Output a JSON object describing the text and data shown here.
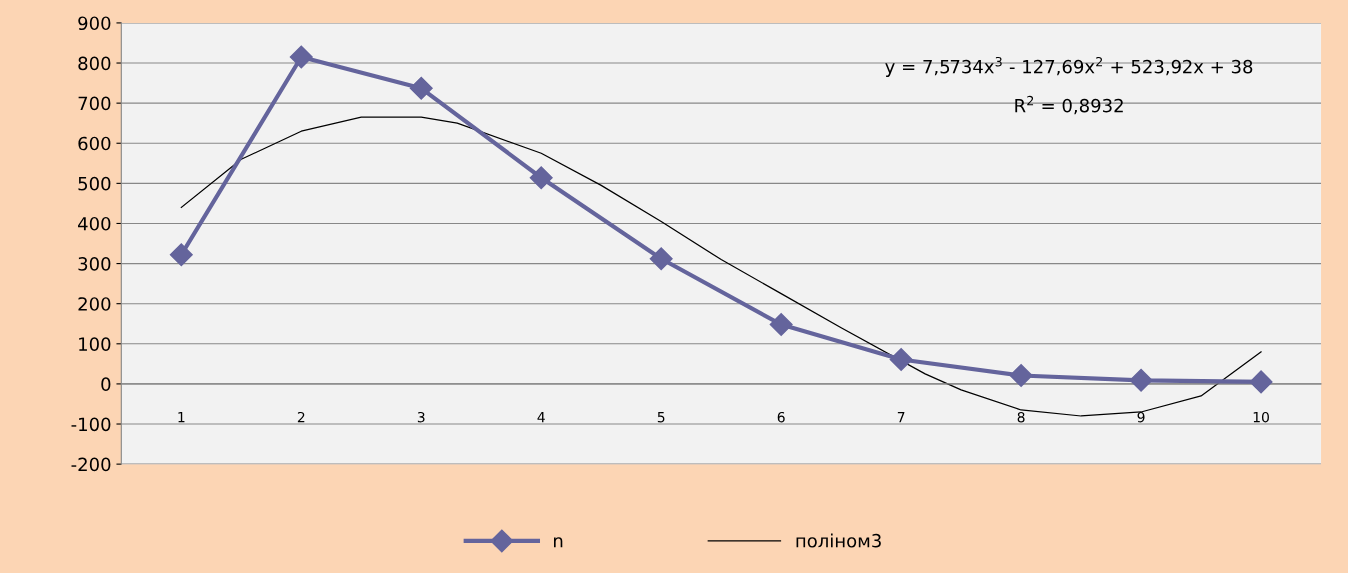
{
  "chart_data": {
    "type": "line",
    "x": [
      1,
      2,
      3,
      4,
      5,
      6,
      7,
      8,
      9,
      10
    ],
    "xlim": [
      0.5,
      10.5
    ],
    "xticks": [
      1,
      2,
      3,
      4,
      5,
      6,
      7,
      8,
      9,
      10
    ],
    "ylim": [
      -200,
      900
    ],
    "yticks": [
      -200,
      -100,
      0,
      100,
      200,
      300,
      400,
      500,
      600,
      700,
      800,
      900
    ],
    "grid": "y",
    "legend": "bottom",
    "marker": "diamond",
    "line_style": "solid",
    "series": [
      {
        "name": "n",
        "color": "#64649c",
        "values": [
          322,
          815,
          737,
          514,
          312,
          148,
          61,
          21,
          9,
          5
        ]
      },
      {
        "name": "поліном3",
        "color": "#000000",
        "type": "line",
        "marker": "none",
        "x": [
          1,
          1.5,
          2,
          2.5,
          3,
          3.3,
          4,
          4.5,
          5,
          5.5,
          6,
          6.5,
          7.2,
          7.5,
          8,
          8.5,
          9,
          9.5,
          10
        ],
        "values": [
          440,
          560,
          630,
          665,
          665,
          650,
          575,
          495,
          405,
          310,
          225,
          140,
          25,
          -15,
          -65,
          -80,
          -70,
          -30,
          80
        ]
      }
    ],
    "annotations": [
      "y = 7,5734x$^{3}$ - 127,69x$^{2}$ + 523,92x + 38",
      "R$^{2}$ = 0,8932"
    ]
  }
}
